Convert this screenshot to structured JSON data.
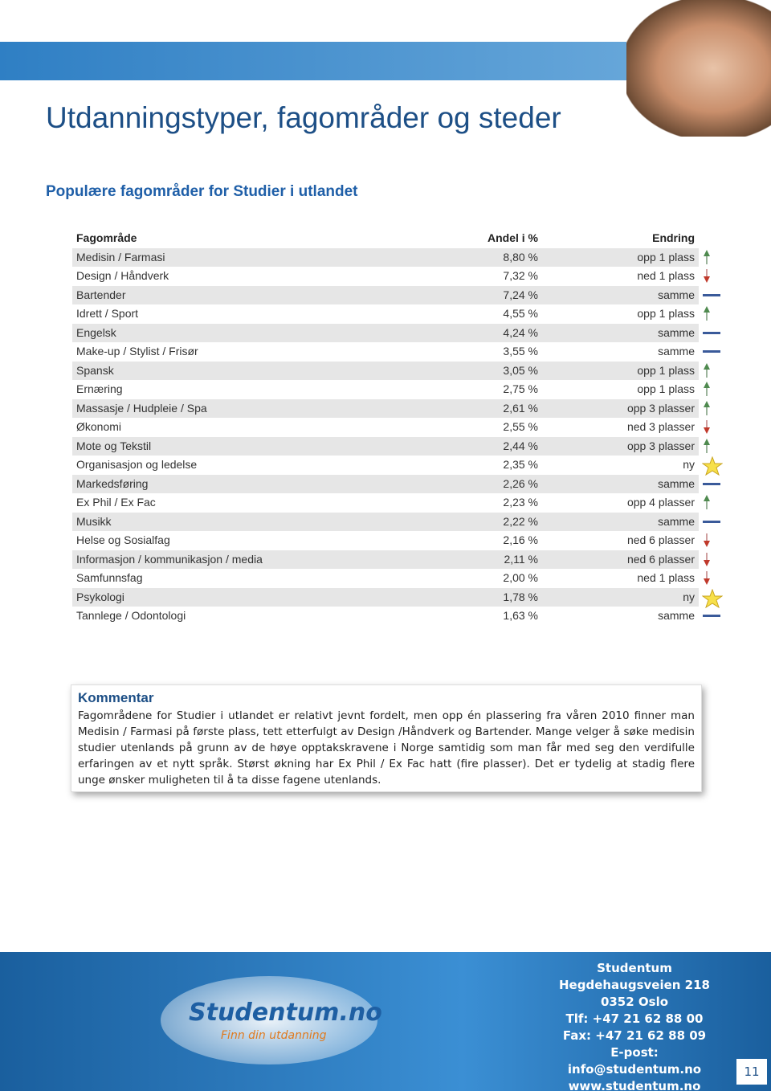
{
  "header": {
    "title": "Utdanningstyper, fagområder og steder",
    "subtitle": "Populære fagområder for Studier i utlandet"
  },
  "table": {
    "columns": [
      "Fagområde",
      "Andel i %",
      "Endring"
    ],
    "rows": [
      [
        "Medisin / Farmasi",
        "8,80 %",
        "opp 1 plass"
      ],
      [
        "Design / Håndverk",
        "7,32 %",
        "ned 1 plass"
      ],
      [
        "Bartender",
        "7,24 %",
        "samme"
      ],
      [
        "Idrett / Sport",
        "4,55 %",
        "opp 1 plass"
      ],
      [
        "Engelsk",
        "4,24 %",
        "samme"
      ],
      [
        "Make-up / Stylist / Frisør",
        "3,55 %",
        "samme"
      ],
      [
        "Spansk",
        "3,05 %",
        "opp 1 plass"
      ],
      [
        "Ernæring",
        "2,75 %",
        "opp 1 plass"
      ],
      [
        "Massasje / Hudpleie / Spa",
        "2,61 %",
        "opp 3 plasser"
      ],
      [
        "Økonomi",
        "2,55 %",
        "ned 3 plasser"
      ],
      [
        "Mote og Tekstil",
        "2,44 %",
        "opp 3 plasser"
      ],
      [
        "Organisasjon og ledelse",
        "2,35 %",
        "ny"
      ],
      [
        "Markedsføring",
        "2,26 %",
        "samme"
      ],
      [
        "Ex Phil / Ex Fac",
        "2,23 %",
        "opp 4 plasser"
      ],
      [
        "Musikk",
        "2,22 %",
        "samme"
      ],
      [
        "Helse og Sosialfag",
        "2,16 %",
        "ned 6 plasser"
      ],
      [
        "Informasjon / kommunikasjon / media",
        "2,11 %",
        "ned 6 plasser"
      ],
      [
        "Samfunnsfag",
        "2,00 %",
        "ned 1 plass"
      ],
      [
        "Psykologi",
        "1,78 %",
        "ny"
      ],
      [
        "Tannlege / Odontologi",
        "1,63 %",
        "samme"
      ]
    ]
  },
  "comment": {
    "title": "Kommentar",
    "text": "Fagområdene for Studier i utlandet er relativt jevnt fordelt, men opp én plassering fra våren 2010 finner man Medisin / Farmasi på første plass, tett etterfulgt av Design /Håndverk og Bartender. Mange velger å søke medisin studier utenlands på grunn av de høye opptakskravene i Norge samtidig som man får med seg den verdifulle erfaringen av et nytt språk. Størst økning har Ex Phil / Ex Fac hatt (fire plasser). Det er tydelig at stadig flere unge ønsker muligheten til å ta disse fagene utenlands."
  },
  "footer": {
    "logo": "Studentum.no",
    "tagline": "Finn din utdanning",
    "address": [
      "Studentum",
      "Hegdehaugsveien 218",
      "0352 Oslo",
      "Tlf: +47 21 62 88 00",
      "Fax: +47 21 62 88 09",
      "E-post: info@studentum.no",
      "www.studentum.no"
    ],
    "page": "11"
  }
}
